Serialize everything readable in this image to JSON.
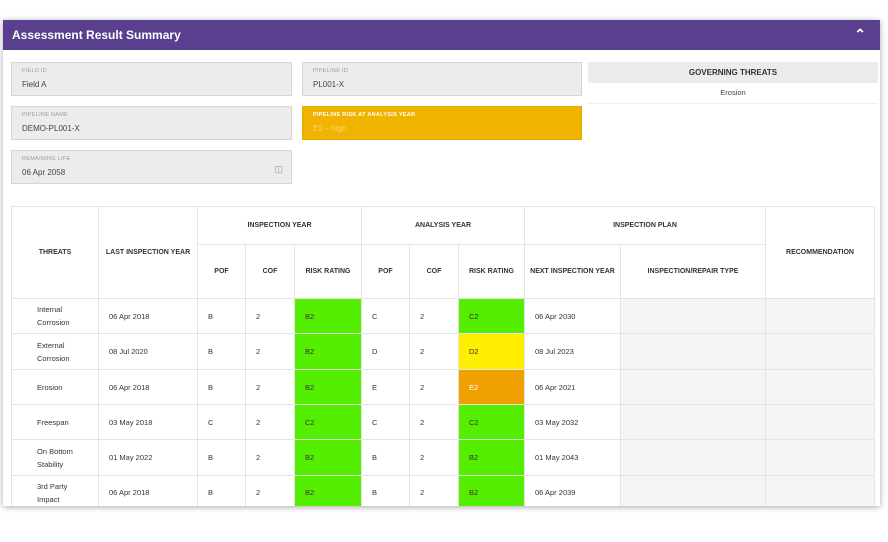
{
  "header": {
    "title": "Assessment Result Summary",
    "collapse_icon": "chevron-up-icon"
  },
  "fields": {
    "field_id": {
      "label": "FIELD ID",
      "value": "Field A"
    },
    "pipeline_id": {
      "label": "PIPELINE ID",
      "value": "PL001-X"
    },
    "pipeline_name": {
      "label": "PIPELINE NAME",
      "value": "DEMO-PL001-X"
    },
    "pipeline_risk": {
      "label": "PIPELINE RISK AT ANALYSIS YEAR",
      "value": "E2 - High"
    },
    "remaining_life": {
      "label": "REMAINING LIFE",
      "value": "06 Apr 2058",
      "icon": "calendar-icon"
    }
  },
  "governing_threats": {
    "label": "GOVERNING THREATS",
    "value": "Erosion"
  },
  "table": {
    "headers": {
      "threats": "THREATS",
      "last_inspection_year": "LAST INSPECTION YEAR",
      "inspection_year": "INSPECTION YEAR",
      "analysis_year": "ANALYSIS YEAR",
      "inspection_plan": "INSPECTION PLAN",
      "recommendation": "RECOMMENDATION",
      "pof": "POF",
      "cof": "COF",
      "risk_rating": "RISK RATING",
      "next_inspection_year": "NEXT INSPECTION YEAR",
      "inspection_repair_type": "INSPECTION/REPAIR TYPE"
    },
    "colors": {
      "green": "#55ee00",
      "yellow": "#ffee00",
      "orange": "#f0a000"
    },
    "rows": [
      {
        "threat": "Internal Corrosion",
        "last": "06 Apr 2018",
        "pof1": "B",
        "cof1": "2",
        "risk1": "B2",
        "risk1_color": "green",
        "pof2": "C",
        "cof2": "2",
        "risk2": "C2",
        "risk2_color": "green",
        "next": "06 Apr 2030",
        "type": "",
        "rec": ""
      },
      {
        "threat": "External Corrosion",
        "last": "08 Jul 2020",
        "pof1": "B",
        "cof1": "2",
        "risk1": "B2",
        "risk1_color": "green",
        "pof2": "D",
        "cof2": "2",
        "risk2": "D2",
        "risk2_color": "yellow",
        "next": "08 Jul 2023",
        "type": "",
        "rec": ""
      },
      {
        "threat": "Erosion",
        "last": "06 Apr 2018",
        "pof1": "B",
        "cof1": "2",
        "risk1": "B2",
        "risk1_color": "green",
        "pof2": "E",
        "cof2": "2",
        "risk2": "E2",
        "risk2_color": "orange",
        "next": "06 Apr 2021",
        "type": "",
        "rec": ""
      },
      {
        "threat": "Freespan",
        "last": "03 May 2018",
        "pof1": "C",
        "cof1": "2",
        "risk1": "C2",
        "risk1_color": "green",
        "pof2": "C",
        "cof2": "2",
        "risk2": "C2",
        "risk2_color": "green",
        "next": "03 May 2032",
        "type": "",
        "rec": ""
      },
      {
        "threat": "On Bottom Stability",
        "last": "01 May 2022",
        "pof1": "B",
        "cof1": "2",
        "risk1": "B2",
        "risk1_color": "green",
        "pof2": "B",
        "cof2": "2",
        "risk2": "B2",
        "risk2_color": "green",
        "next": "01 May 2043",
        "type": "",
        "rec": ""
      },
      {
        "threat": "3rd Party Impact",
        "last": "06 Apr 2018",
        "pof1": "B",
        "cof1": "2",
        "risk1": "B2",
        "risk1_color": "green",
        "pof2": "B",
        "cof2": "2",
        "risk2": "B2",
        "risk2_color": "green",
        "next": "06 Apr 2039",
        "type": "",
        "rec": ""
      }
    ]
  }
}
